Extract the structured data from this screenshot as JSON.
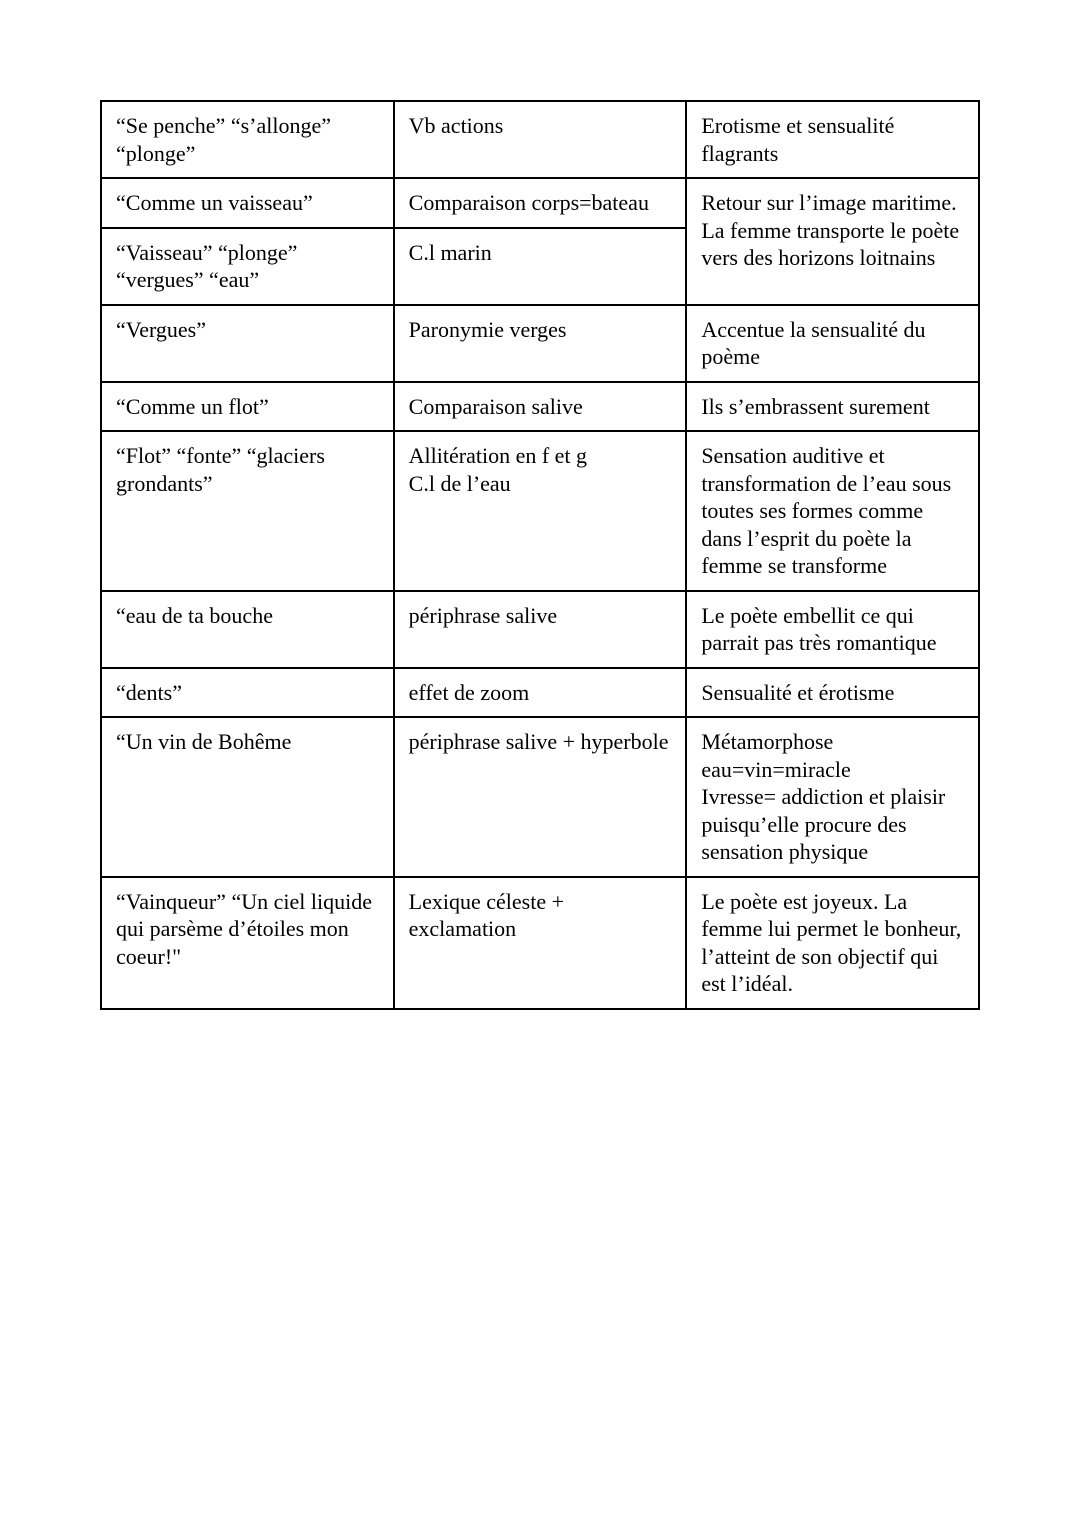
{
  "table": {
    "type": "table",
    "border_color": "#000000",
    "background_color": "#ffffff",
    "text_color": "#000000",
    "font_family": "Times New Roman",
    "font_size_pt": 16,
    "column_widths_pct": [
      33.3,
      33.3,
      33.3
    ],
    "rows": [
      {
        "citation": "“Se penche” “s’allonge” “plonge”",
        "device": "Vb actions",
        "effect": "Erotisme et sensualité flagrants"
      },
      {
        "citation": "“Comme un vaisseau”",
        "device": "Comparaison corps=bateau",
        "effect": "Retour sur l’image maritime. La femme transporte le poète vers des horizons loitnains",
        "rowspan_effect": 2
      },
      {
        "citation": "“Vaisseau” “plonge” “vergues” “eau”",
        "device": "C.l marin"
      },
      {
        "citation": "“Vergues”",
        "device": "Paronymie verges",
        "effect": "Accentue la sensualité du poème"
      },
      {
        "citation": "“Comme un flot”",
        "device": "Comparaison salive",
        "effect": "Ils s’embrassent surement"
      },
      {
        "citation": "“Flot” “fonte” “glaciers grondants”",
        "device": "Allitération en f et g\nC.l de l’eau",
        "effect": "Sensation auditive et transformation de l’eau sous toutes ses formes comme dans l’esprit du poète la femme se transforme"
      },
      {
        "citation": "“eau de ta bouche",
        "device": "périphrase salive",
        "effect": "Le poète embellit ce qui parrait pas très romantique"
      },
      {
        "citation": "“dents”",
        "device": "effet de zoom",
        "effect": "Sensualité et érotisme"
      },
      {
        "citation": "“Un vin de Bohême",
        "device": "périphrase salive + hyperbole",
        "effect": "Métamorphose eau=vin=miracle\nIvresse= addiction et plaisir puisqu’elle procure des sensation physique"
      },
      {
        "citation": "“Vainqueur” “Un ciel liquide qui parsème d’étoiles mon coeur!\"",
        "device": "Lexique céleste + exclamation",
        "effect": "Le poète est joyeux. La femme lui permet le bonheur, l’atteint de son objectif qui est l’idéal."
      }
    ]
  }
}
